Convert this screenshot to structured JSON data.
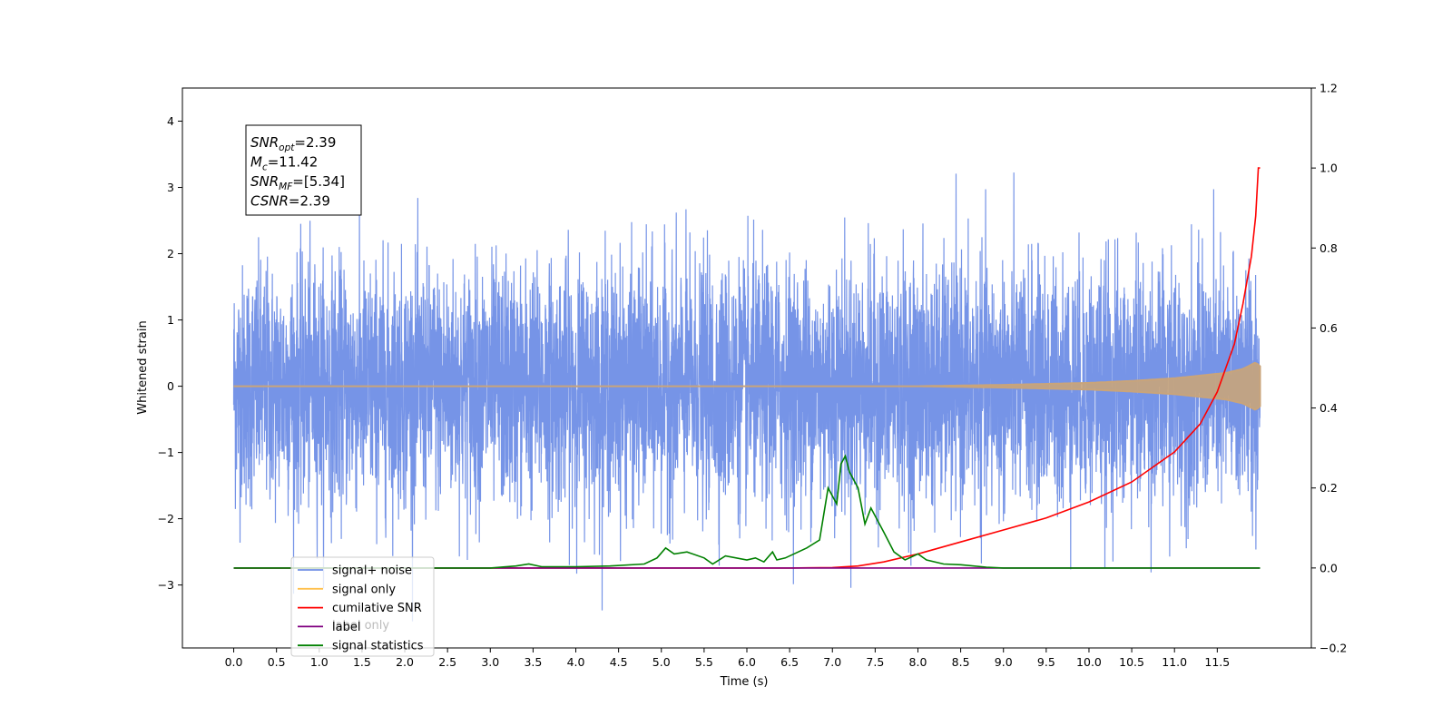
{
  "chart_data": {
    "type": "line",
    "xlabel": "Time (s)",
    "ylabel_left": "Whitened strain",
    "xlim": [
      -0.6,
      12.6
    ],
    "ylim_left": [
      -3.95,
      4.5
    ],
    "ylim_right": [
      -0.2,
      1.2
    ],
    "x_ticks": [
      "0.0",
      "0.5",
      "1.0",
      "1.5",
      "2.0",
      "2.5",
      "3.0",
      "3.5",
      "4.0",
      "4.5",
      "5.0",
      "5.5",
      "6.0",
      "6.5",
      "7.0",
      "7.5",
      "8.0",
      "8.5",
      "9.0",
      "9.5",
      "10.0",
      "10.5",
      "11.0",
      "11.5"
    ],
    "y_ticks_left": [
      "4",
      "3",
      "2",
      "1",
      "0",
      "−1",
      "−2",
      "−3"
    ],
    "y_ticks_right": [
      "1.2",
      "1.0",
      "0.8",
      "0.6",
      "0.4",
      "0.2",
      "0.0",
      "−0.2"
    ],
    "stats": [
      {
        "name": "SNR",
        "sub": "opt",
        "value": "=2.39"
      },
      {
        "name": "M",
        "sub": "c",
        "value": "=11.42"
      },
      {
        "name": "SNR",
        "sub": "MF",
        "value": "=[5.34]"
      },
      {
        "name": "CSNR",
        "sub": "",
        "value": "=2.39"
      }
    ],
    "legend": [
      {
        "label": "signal+ noise",
        "color": "#6f8ee6"
      },
      {
        "label": "signal only",
        "color": "#ffc04d"
      },
      {
        "label": "cumilative SNR",
        "color": "#ff0000"
      },
      {
        "label": "label",
        "color": "#800080"
      },
      {
        "label": "signal statistics",
        "color": "#008000"
      }
    ],
    "legend_placement": "lower-left",
    "overlapped_text": "label only",
    "series": [
      {
        "name": "signal+ noise",
        "axis": "left",
        "color": "#6f8ee6",
        "x_range": [
          0.0,
          12.0
        ],
        "y_range_approx": [
          -3.55,
          4.1
        ],
        "noise_sigma_approx": 0.9
      },
      {
        "name": "signal only",
        "axis": "left",
        "color": "#ffc04d",
        "envelope": {
          "x": [
            0.0,
            8.0,
            9.0,
            10.0,
            10.5,
            11.0,
            11.3,
            11.6,
            11.8,
            11.95,
            12.0
          ],
          "amplitude": [
            0.0,
            0.0,
            0.02,
            0.05,
            0.08,
            0.12,
            0.16,
            0.2,
            0.26,
            0.36,
            0.3
          ]
        }
      },
      {
        "name": "cumilative SNR",
        "axis": "right",
        "color": "#ff0000",
        "x": [
          0.0,
          6.5,
          7.0,
          7.3,
          7.6,
          8.0,
          8.5,
          9.0,
          9.5,
          10.0,
          10.5,
          11.0,
          11.3,
          11.5,
          11.7,
          11.8,
          11.9,
          11.95,
          11.98,
          12.0
        ],
        "y": [
          0.0,
          0.0,
          0.001,
          0.005,
          0.015,
          0.035,
          0.065,
          0.095,
          0.125,
          0.165,
          0.215,
          0.29,
          0.36,
          0.44,
          0.56,
          0.66,
          0.78,
          0.88,
          1.0,
          1.0
        ]
      },
      {
        "name": "label",
        "axis": "right",
        "color": "#800080",
        "x": [
          0.0,
          12.0
        ],
        "y": [
          0.0,
          0.0
        ]
      },
      {
        "name": "signal statistics",
        "axis": "right",
        "color": "#008000",
        "x": [
          0.0,
          3.0,
          3.3,
          3.45,
          3.6,
          4.0,
          4.4,
          4.8,
          4.95,
          5.05,
          5.15,
          5.3,
          5.5,
          5.6,
          5.75,
          6.0,
          6.1,
          6.2,
          6.3,
          6.35,
          6.45,
          6.7,
          6.85,
          6.95,
          7.05,
          7.1,
          7.15,
          7.2,
          7.3,
          7.38,
          7.45,
          7.6,
          7.72,
          7.85,
          8.0,
          8.1,
          8.3,
          8.5,
          8.8,
          9.0,
          12.0
        ],
        "y": [
          0.0,
          0.0,
          0.005,
          0.01,
          0.003,
          0.003,
          0.005,
          0.01,
          0.025,
          0.05,
          0.035,
          0.04,
          0.025,
          0.01,
          0.03,
          0.02,
          0.025,
          0.015,
          0.04,
          0.02,
          0.025,
          0.05,
          0.07,
          0.2,
          0.16,
          0.26,
          0.28,
          0.24,
          0.2,
          0.11,
          0.15,
          0.09,
          0.04,
          0.02,
          0.035,
          0.02,
          0.01,
          0.008,
          0.002,
          0.0,
          0.0
        ]
      }
    ]
  }
}
